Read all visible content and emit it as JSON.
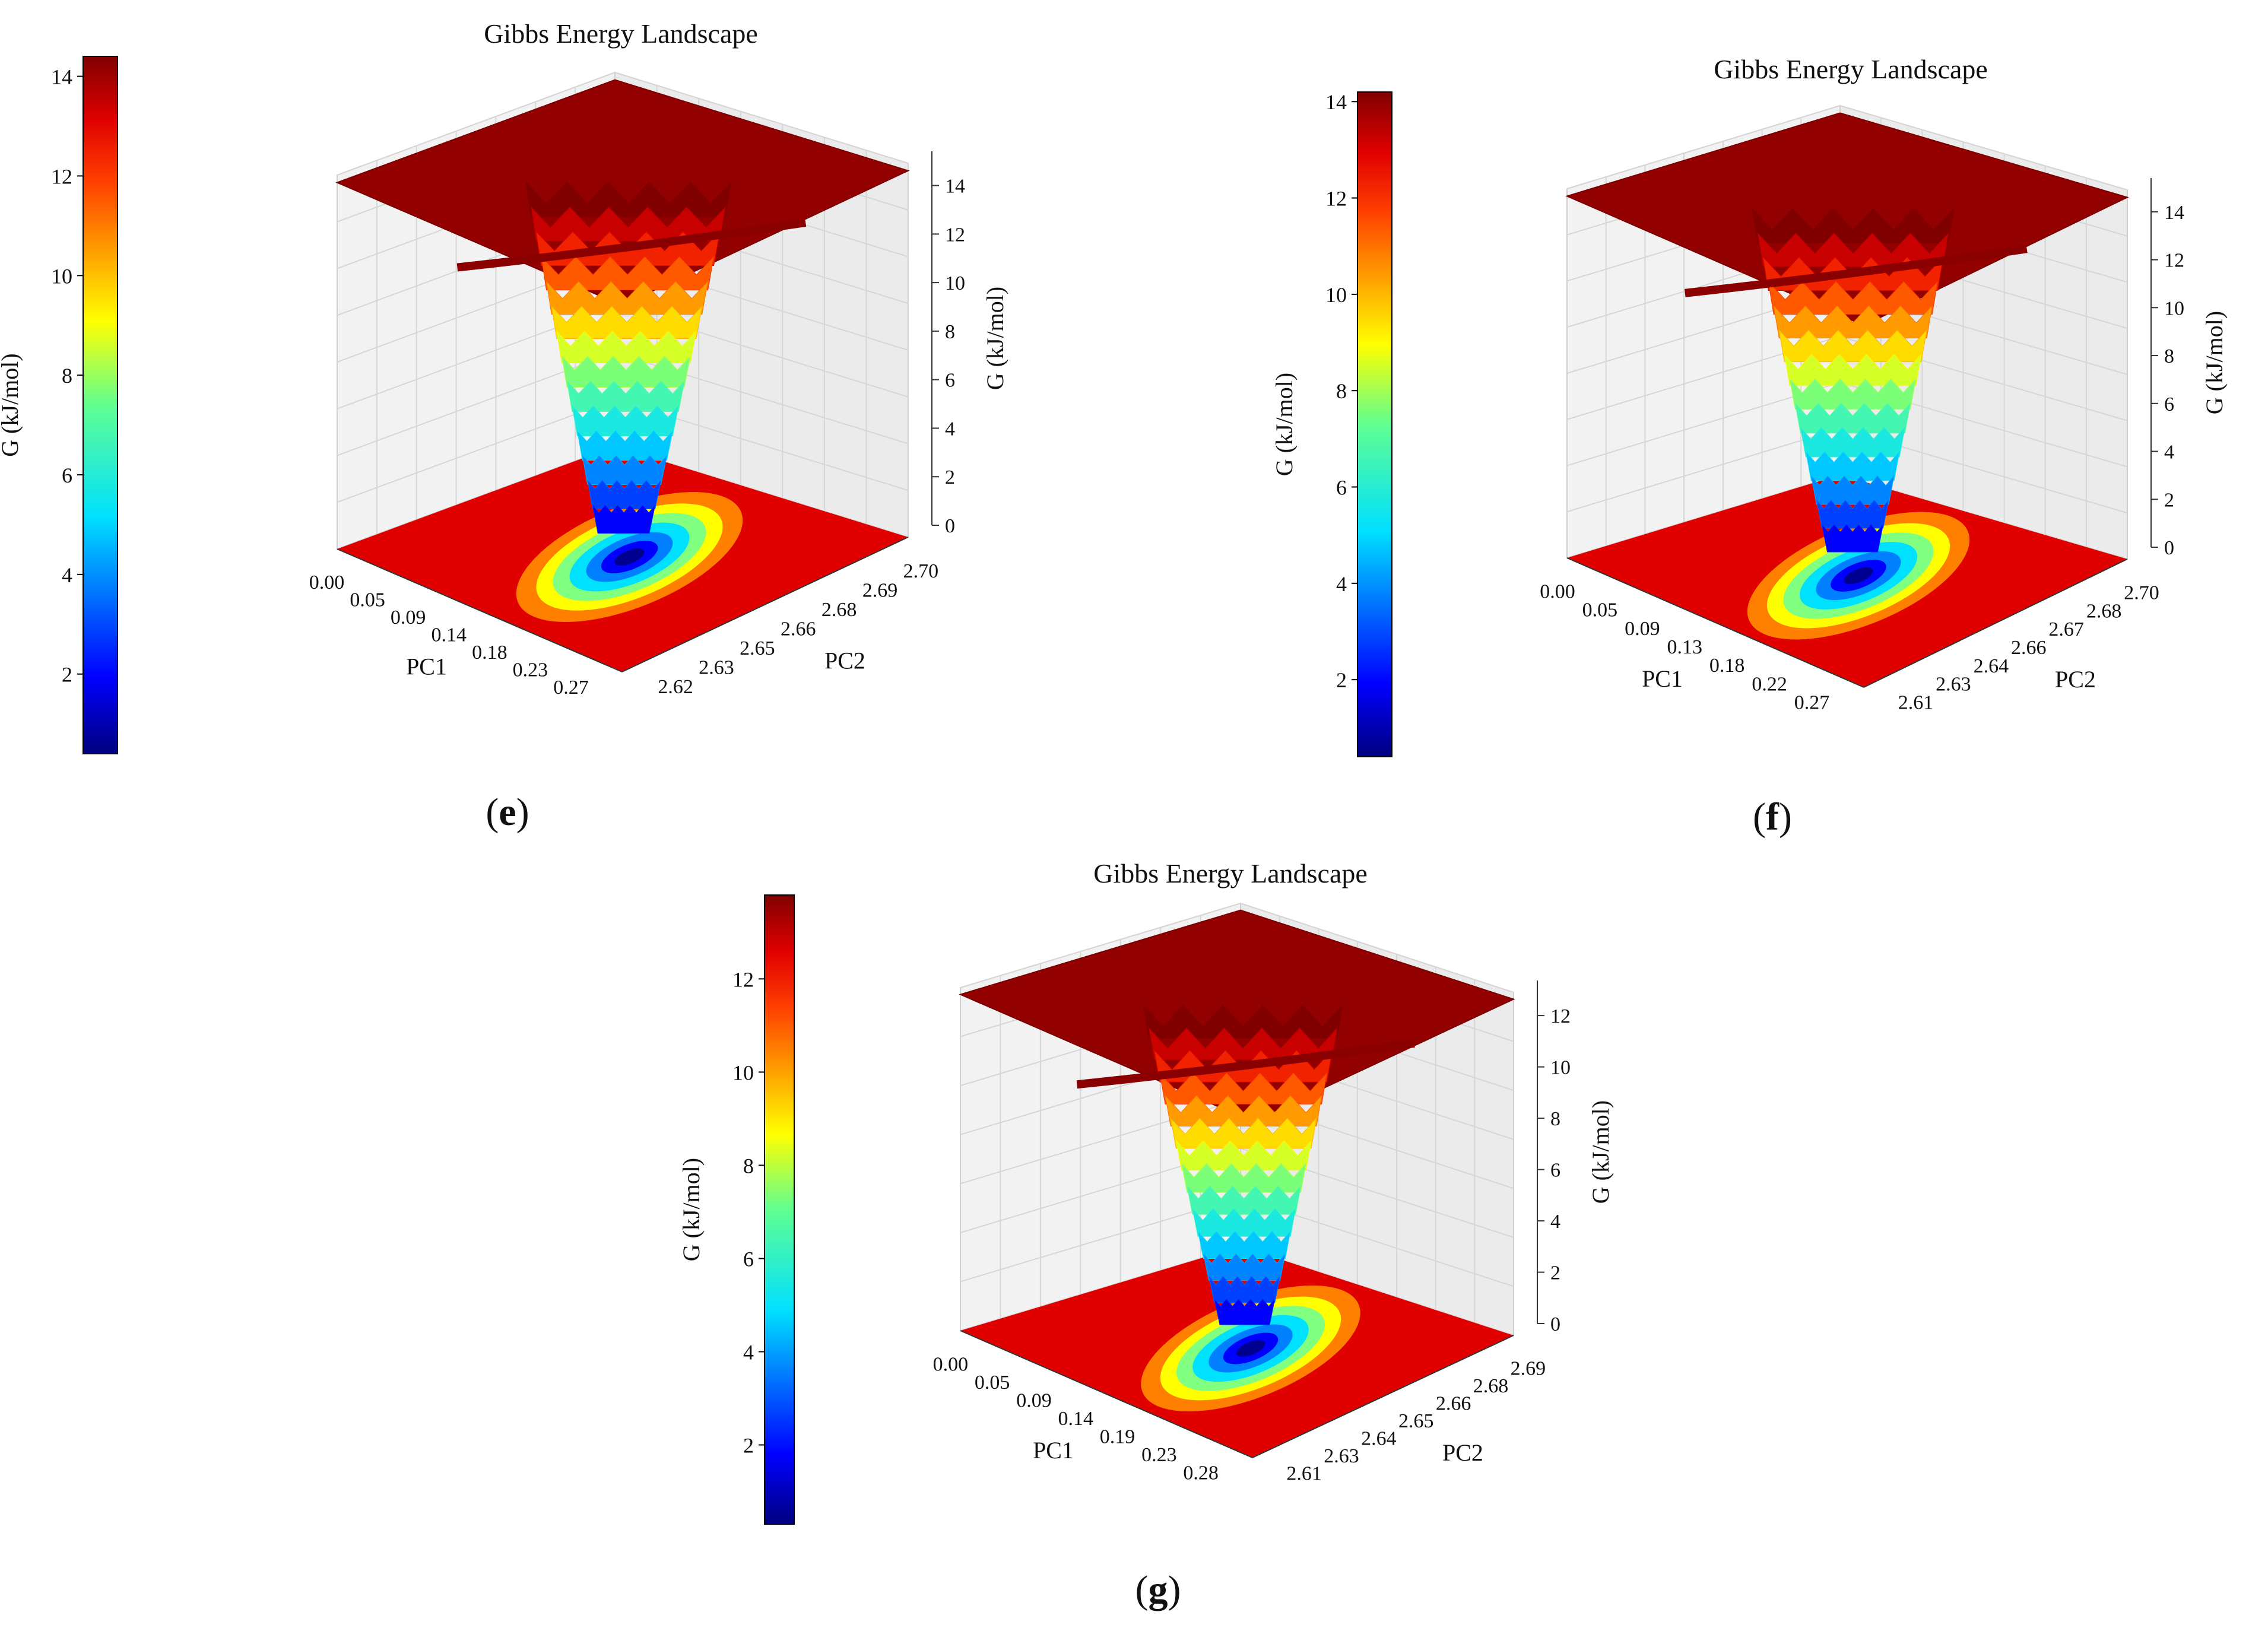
{
  "panels": [
    {
      "id": "e",
      "label": "(e)",
      "title": "Gibbs Energy Landscape",
      "colorbar": {
        "label": "G (kJ/mol)",
        "min": 0.4,
        "max": 14.4,
        "ticks": [
          "2",
          "4",
          "6",
          "8",
          "10",
          "12",
          "14"
        ],
        "tick_values": [
          2,
          4,
          6,
          8,
          10,
          12,
          14
        ]
      },
      "axes": {
        "x_label": "PC1",
        "x_ticks": [
          "0.00",
          "0.05",
          "0.09",
          "0.14",
          "0.18",
          "0.23",
          "0.27"
        ],
        "y_label": "PC2",
        "y_ticks": [
          "2.62",
          "2.63",
          "2.65",
          "2.66",
          "2.68",
          "2.69",
          "2.70"
        ],
        "z_label": "G (kJ/mol)",
        "z_ticks": [
          "0",
          "2",
          "4",
          "6",
          "8",
          "10",
          "12",
          "14"
        ]
      }
    },
    {
      "id": "f",
      "label": "(f)",
      "title": "Gibbs Energy Landscape",
      "colorbar": {
        "label": "G (kJ/mol)",
        "min": 0.4,
        "max": 14.2,
        "ticks": [
          "2",
          "4",
          "6",
          "8",
          "10",
          "12",
          "14"
        ],
        "tick_values": [
          2,
          4,
          6,
          8,
          10,
          12,
          14
        ]
      },
      "axes": {
        "x_label": "PC1",
        "x_ticks": [
          "0.00",
          "0.05",
          "0.09",
          "0.13",
          "0.18",
          "0.22",
          "0.27"
        ],
        "y_label": "PC2",
        "y_ticks": [
          "2.61",
          "2.63",
          "2.64",
          "2.66",
          "2.67",
          "2.68",
          "2.70"
        ],
        "z_label": "G (kJ/mol)",
        "z_ticks": [
          "0",
          "2",
          "4",
          "6",
          "8",
          "10",
          "12",
          "14"
        ]
      }
    },
    {
      "id": "g",
      "label": "(g)",
      "title": "Gibbs Energy Landscape",
      "colorbar": {
        "label": "G (kJ/mol)",
        "min": 0.3,
        "max": 13.8,
        "ticks": [
          "2",
          "4",
          "6",
          "8",
          "10",
          "12"
        ],
        "tick_values": [
          2,
          4,
          6,
          8,
          10,
          12
        ]
      },
      "axes": {
        "x_label": "PC1",
        "x_ticks": [
          "0.00",
          "0.05",
          "0.09",
          "0.14",
          "0.19",
          "0.23",
          "0.28"
        ],
        "y_label": "PC2",
        "y_ticks": [
          "2.61",
          "2.63",
          "2.64",
          "2.65",
          "2.66",
          "2.68",
          "2.69"
        ],
        "z_label": "G (kJ/mol)",
        "z_ticks": [
          "0",
          "2",
          "4",
          "6",
          "8",
          "10",
          "12"
        ]
      }
    }
  ],
  "chart_data": [
    {
      "type": "surface3d",
      "title": "Gibbs Energy Landscape",
      "xlabel": "PC1",
      "ylabel": "PC2",
      "zlabel": "G (kJ/mol)",
      "xlim": [
        0.0,
        0.27
      ],
      "ylim": [
        2.62,
        2.7
      ],
      "zlim": [
        0,
        14
      ],
      "colormap": "jet",
      "surface": {
        "plateau_G": 14.4,
        "min_G": 0.4,
        "min_location": {
          "PC1": 0.15,
          "PC2": 2.66
        }
      },
      "contour_projection": {
        "plane": "G=0",
        "floor_color": "#e00000"
      }
    },
    {
      "type": "surface3d",
      "title": "Gibbs Energy Landscape",
      "xlabel": "PC1",
      "ylabel": "PC2",
      "zlabel": "G (kJ/mol)",
      "xlim": [
        0.0,
        0.27
      ],
      "ylim": [
        2.61,
        2.7
      ],
      "zlim": [
        0,
        14
      ],
      "colormap": "jet",
      "surface": {
        "plateau_G": 14.2,
        "min_G": 0.4,
        "min_location": {
          "PC1": 0.14,
          "PC2": 2.655
        }
      },
      "contour_projection": {
        "plane": "G=0",
        "floor_color": "#e00000"
      }
    },
    {
      "type": "surface3d",
      "title": "Gibbs Energy Landscape",
      "xlabel": "PC1",
      "ylabel": "PC2",
      "zlabel": "G (kJ/mol)",
      "xlim": [
        0.0,
        0.28
      ],
      "ylim": [
        2.61,
        2.69
      ],
      "zlim": [
        0,
        13
      ],
      "colormap": "jet",
      "surface": {
        "plateau_G": 13.8,
        "min_G": 0.3,
        "min_location": {
          "PC1": 0.15,
          "PC2": 2.65
        }
      },
      "contour_projection": {
        "plane": "G=0",
        "floor_color": "#e00000"
      }
    }
  ]
}
